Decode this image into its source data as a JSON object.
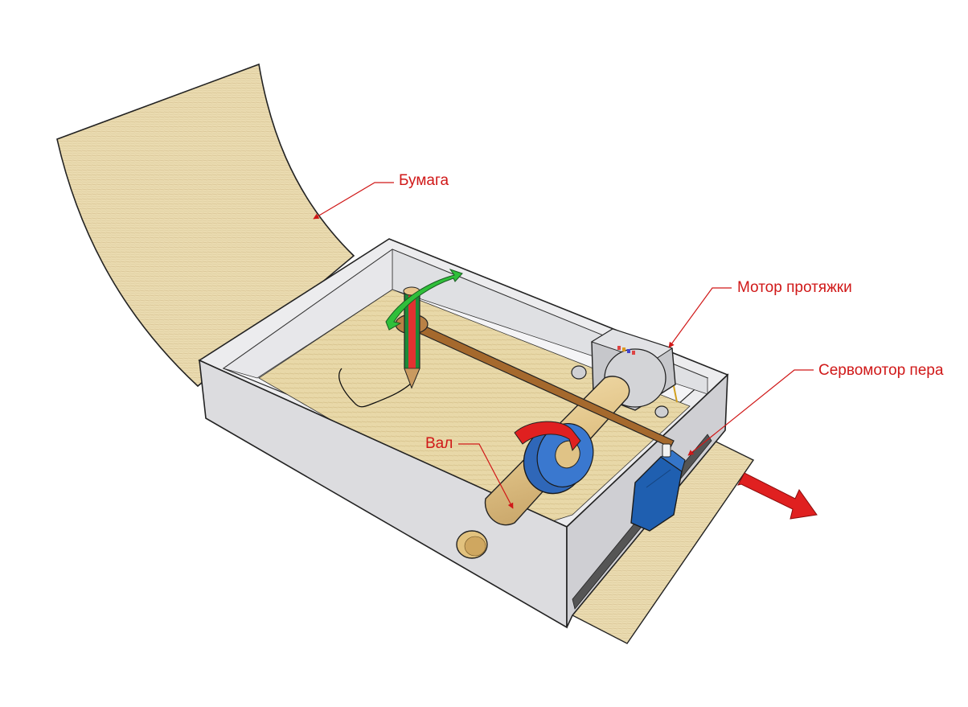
{
  "labels": {
    "paper": "Бумага",
    "feed_motor": "Мотор протяжки",
    "pen_servo": "Сервомотор пера",
    "shaft": "Вал"
  },
  "colors": {
    "label_text": "#d01818",
    "leader_line": "#d01818",
    "paper": "#e9d7a8",
    "box_wall": "#e4e4e6",
    "shaft": "#e3c68a",
    "wheel": "#2f67b8",
    "servo": "#1f5fb0",
    "motor": "#cfd0d3",
    "pen_arm": "#a5692d",
    "pencil_red": "#e23131",
    "pencil_green": "#1c8a37",
    "arrow_red": "#e02020",
    "arrow_green": "#2fbf3a"
  }
}
